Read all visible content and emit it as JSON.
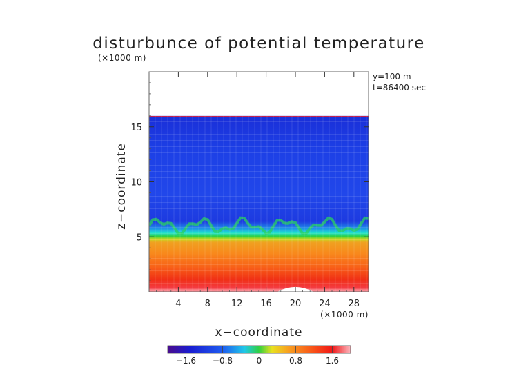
{
  "chart_data": {
    "type": "heatmap",
    "title": "disturbunce of potential temperature",
    "scale_note": "(×1000 m)",
    "x_scale_note": "(×1000 m)",
    "xlabel": "x−coordinate",
    "ylabel": "z−coordinate",
    "annotations": [
      "y=100 m",
      "t=86400 sec"
    ],
    "x_range": [
      0,
      30
    ],
    "y_range": [
      0,
      20
    ],
    "x_ticks": [
      {
        "v": 4,
        "label": "4"
      },
      {
        "v": 8,
        "label": "8"
      },
      {
        "v": 12,
        "label": "12"
      },
      {
        "v": 16,
        "label": "16"
      },
      {
        "v": 20,
        "label": "20"
      },
      {
        "v": 24,
        "label": "24"
      },
      {
        "v": 28,
        "label": "28"
      }
    ],
    "y_ticks": [
      {
        "v": 5,
        "label": "5"
      },
      {
        "v": 10,
        "label": "10"
      },
      {
        "v": 15,
        "label": "15"
      }
    ],
    "field_top_km": 16.0,
    "colorbar": {
      "range": [
        -2.0,
        2.0
      ],
      "ticks": [
        {
          "v": -1.6,
          "label": "−1.6"
        },
        {
          "v": -0.8,
          "label": "−0.8"
        },
        {
          "v": 0,
          "label": "0"
        },
        {
          "v": 0.8,
          "label": "0.8"
        },
        {
          "v": 1.6,
          "label": "1.6"
        }
      ]
    },
    "regions": [
      {
        "name": "upper layer",
        "z_from": 6.5,
        "z_to": 16.0,
        "value": -1.3
      },
      {
        "name": "transition",
        "z_from": 5.5,
        "z_to": 6.5,
        "value": 0.0
      },
      {
        "name": "lower layer",
        "z_from": 0.0,
        "z_to": 5.5,
        "value": 1.4
      }
    ]
  }
}
